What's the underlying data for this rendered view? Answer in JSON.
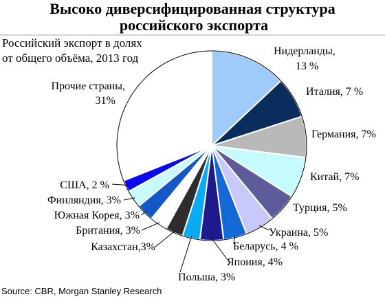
{
  "chart_data": {
    "type": "pie",
    "title_line1": "Высоко диверсифицированная структура",
    "title_line2": "российского экспорта",
    "subtitle_line1": "Российский экспорт в долях",
    "subtitle_line2": "от общего объёма, 2013 год",
    "source": "Source: CBR, Morgan Stanley Research",
    "slices": [
      {
        "name": "Нидерланды",
        "value": 13,
        "color": "#9fcbfb",
        "label_line1": "Нидерланды,",
        "label_line2": "13 %"
      },
      {
        "name": "Италия",
        "value": 7,
        "color": "#0a2d5e",
        "label_line1": "Италия, 7 %",
        "label_line2": ""
      },
      {
        "name": "Германия",
        "value": 7,
        "color": "#b9b9b9",
        "label_line1": "Германия, 7%",
        "label_line2": ""
      },
      {
        "name": "Китай",
        "value": 7,
        "color": "#c6fbfd",
        "label_line1": "Китай, 7%",
        "label_line2": ""
      },
      {
        "name": "Турция",
        "value": 5,
        "color": "#5e5b9a",
        "label_line1": "Турция, 5%",
        "label_line2": ""
      },
      {
        "name": "Украина",
        "value": 5,
        "color": "#c8c8fb",
        "label_line1": "Украина, 5%",
        "label_line2": ""
      },
      {
        "name": "Беларусь",
        "value": 4,
        "color": "#1469d6",
        "label_line1": "Беларусь, 4 %",
        "label_line2": ""
      },
      {
        "name": "Япония",
        "value": 4,
        "color": "#1e1a8e",
        "label_line1": "Япония, 4%",
        "label_line2": ""
      },
      {
        "name": "Польша",
        "value": 3,
        "color": "#0aaaf5",
        "label_line1": "Польша, 3%",
        "label_line2": ""
      },
      {
        "name": "Казахстан",
        "value": 3,
        "color": "#2d2d2d",
        "label_line1": "Казахстан,3%",
        "label_line2": ""
      },
      {
        "name": "Британия",
        "value": 3,
        "color": "#ffffff",
        "label_line1": "Британия, 3%",
        "label_line2": ""
      },
      {
        "name": "Южная Корея",
        "value": 3,
        "color": "#1458c8",
        "label_line1": "Южная Корея, 3%",
        "label_line2": ""
      },
      {
        "name": "Финляндия",
        "value": 3,
        "color": "#c8fafd",
        "label_line1": "Финляндия, 3%",
        "label_line2": ""
      },
      {
        "name": "США",
        "value": 2,
        "color": "#0a0af0",
        "label_line1": "США, 2 %",
        "label_line2": ""
      },
      {
        "name": "Прочие страны",
        "value": 31,
        "color": "#ffffff",
        "label_line1": "Прочие страны,",
        "label_line2": "31%"
      }
    ]
  }
}
